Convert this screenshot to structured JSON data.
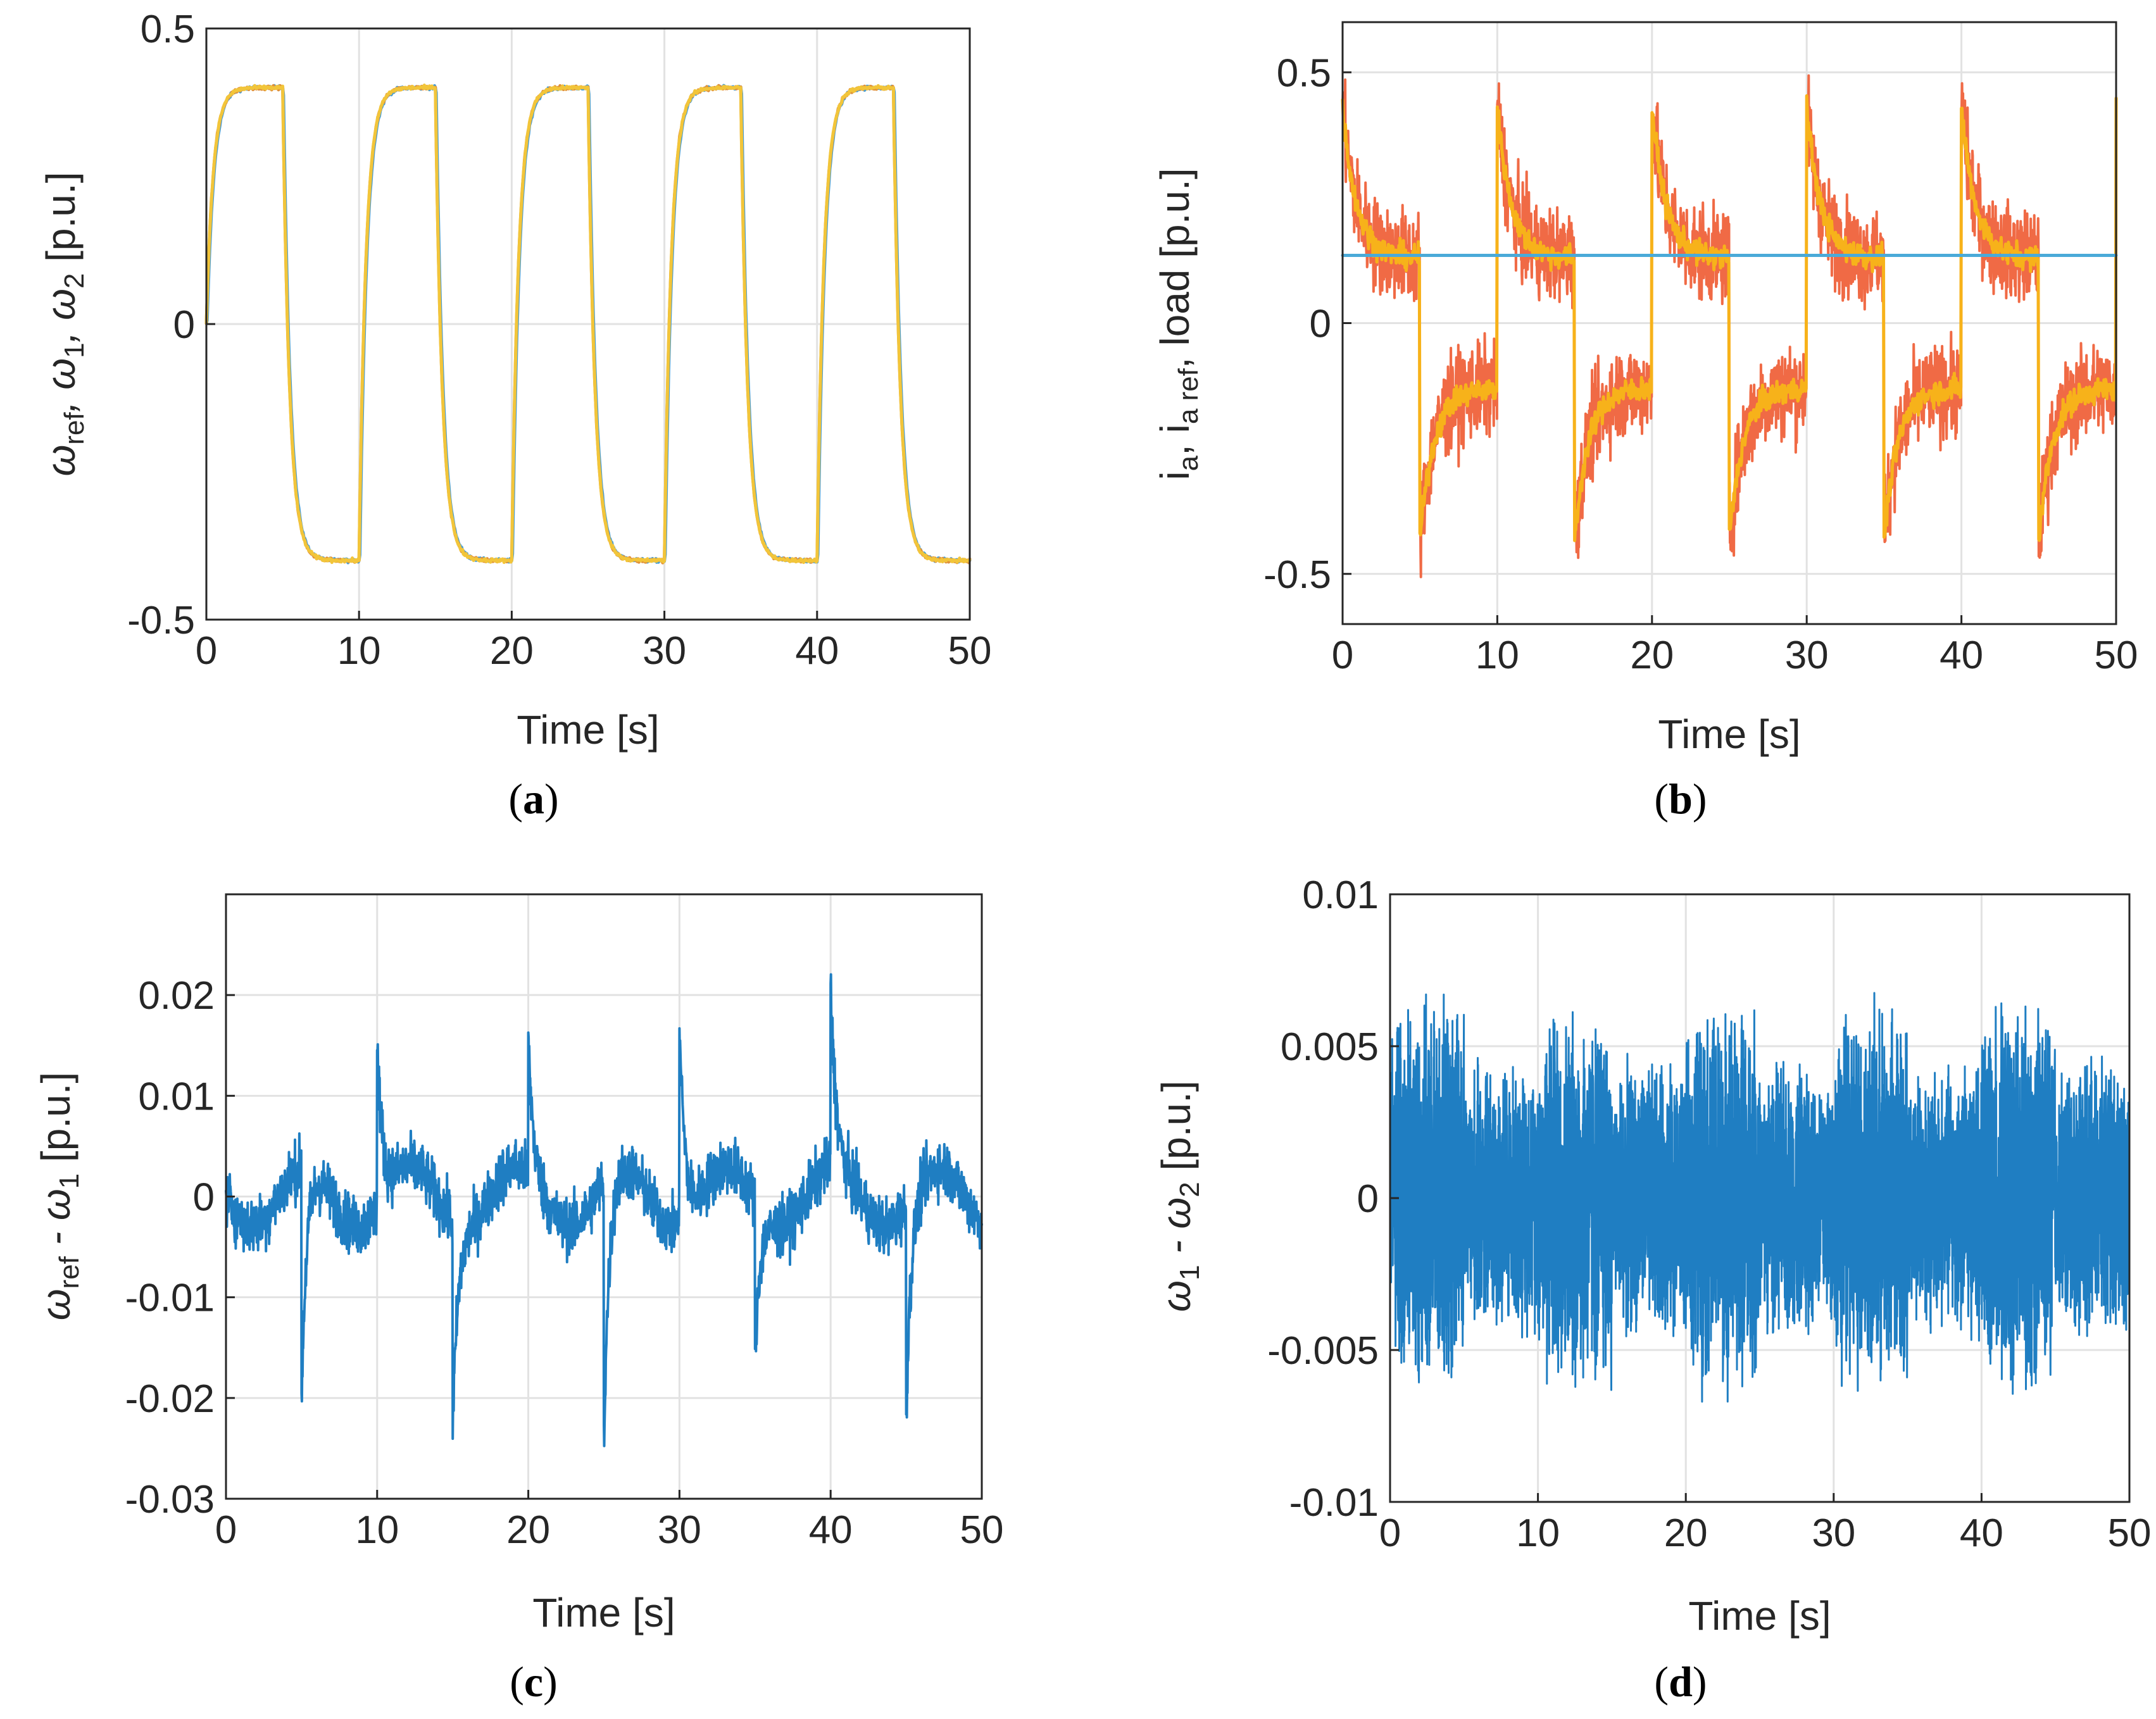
{
  "chart_data": [
    {
      "panel": "(a)",
      "type": "line",
      "xlabel": "Time [s]",
      "ylabel_tex": [
        "ω",
        "ref",
        ", ω",
        "1",
        ", ω",
        "2",
        " [p.u.]"
      ],
      "xlim": [
        0,
        50
      ],
      "ylim": [
        -0.5,
        0.5
      ],
      "xticks": [
        0,
        10,
        20,
        30,
        40,
        50
      ],
      "xtick_labels": [
        "0",
        "10",
        "20",
        "30",
        "40",
        "50"
      ],
      "yticks": [
        -0.5,
        0,
        0.5
      ],
      "ytick_labels": [
        "-0.5",
        "0",
        "0.5"
      ],
      "grid": true,
      "signal": {
        "kind": "square",
        "amplitude": 0.4,
        "period": 10,
        "tau": 0.45,
        "noise": 0.003
      },
      "series": [
        {
          "name": "ω_ref",
          "color": "#4a9fd4",
          "width": 5,
          "offset": 0.05
        },
        {
          "name": "ω_1",
          "color": "#e0913a",
          "width": 5,
          "offset": 0.0
        },
        {
          "name": "ω_2",
          "color": "#f2c53a",
          "width": 5,
          "offset": 0.0
        }
      ]
    },
    {
      "panel": "(b)",
      "type": "line",
      "xlabel": "Time [s]",
      "ylabel_tex": [
        "i",
        "a",
        ", i",
        "a ref",
        ", load [p.u.]"
      ],
      "xlim": [
        0,
        50
      ],
      "ylim": [
        -0.6,
        0.6
      ],
      "xticks": [
        0,
        10,
        20,
        30,
        40,
        50
      ],
      "xtick_labels": [
        "0",
        "10",
        "20",
        "30",
        "40",
        "50"
      ],
      "yticks": [
        -0.5,
        0,
        0.5
      ],
      "ytick_labels": [
        "-0.5",
        "0",
        "0.5"
      ],
      "grid": true,
      "signal": {
        "kind": "current",
        "steady": 0.13,
        "spike": 0.3,
        "decay": 0.9,
        "period": 10
      },
      "series": [
        {
          "name": "i_a",
          "color": "#f06a45",
          "width": 4,
          "noise": 0.09
        },
        {
          "name": "i_a ref",
          "color": "#f7b21a",
          "width": 5,
          "noise": 0.025
        },
        {
          "name": "load",
          "color": "#4aaad8",
          "width": 5,
          "value": 0.135
        }
      ]
    },
    {
      "panel": "(c)",
      "type": "line",
      "xlabel": "Time [s]",
      "ylabel_tex": [
        "ω",
        "ref",
        " - ω",
        "1",
        " [p.u.]"
      ],
      "xlim": [
        0,
        50
      ],
      "ylim": [
        -0.03,
        0.03
      ],
      "xticks": [
        0,
        10,
        20,
        30,
        40,
        50
      ],
      "xtick_labels": [
        "0",
        "10",
        "20",
        "30",
        "40",
        "50"
      ],
      "yticks": [
        -0.03,
        -0.02,
        -0.01,
        0,
        0.01,
        0.02
      ],
      "ytick_labels": [
        "-0.03",
        "-0.02",
        "-0.01",
        "0",
        "0.01",
        "0.02"
      ],
      "grid": true,
      "signal": {
        "kind": "error",
        "noise": 0.0028,
        "peaks_pos": [
          17,
          13,
          21,
          18
        ],
        "peaks_neg": [
          23,
          21,
          26,
          16
        ]
      },
      "series": [
        {
          "name": "ω_ref - ω_1",
          "color": "#1f7ec2",
          "width": 4
        }
      ]
    },
    {
      "panel": "(d)",
      "type": "line",
      "xlabel": "Time [s]",
      "ylabel_tex": [
        "ω",
        "1",
        " - ω",
        "2",
        " [p.u.]"
      ],
      "xlim": [
        0,
        50
      ],
      "ylim": [
        -0.01,
        0.01
      ],
      "xticks": [
        0,
        10,
        20,
        30,
        40,
        50
      ],
      "xtick_labels": [
        "0",
        "10",
        "20",
        "30",
        "40",
        "50"
      ],
      "yticks": [
        -0.01,
        -0.005,
        0,
        0.005,
        0.01
      ],
      "ytick_labels": [
        "-0.01",
        "-0.005",
        "0",
        "0.005",
        "0.01"
      ],
      "grid": true,
      "signal": {
        "kind": "band",
        "amp_high": 0.0068,
        "amp_low": 0.0048
      },
      "series": [
        {
          "name": "ω_1 - ω_2",
          "color": "#1f7ec2",
          "width": 3
        }
      ]
    }
  ],
  "captions": [
    {
      "open": "(",
      "letter": "a",
      "close": ")"
    },
    {
      "open": "(",
      "letter": "b",
      "close": ")"
    },
    {
      "open": "(",
      "letter": "c",
      "close": ")"
    },
    {
      "open": "(",
      "letter": "d",
      "close": ")"
    }
  ]
}
